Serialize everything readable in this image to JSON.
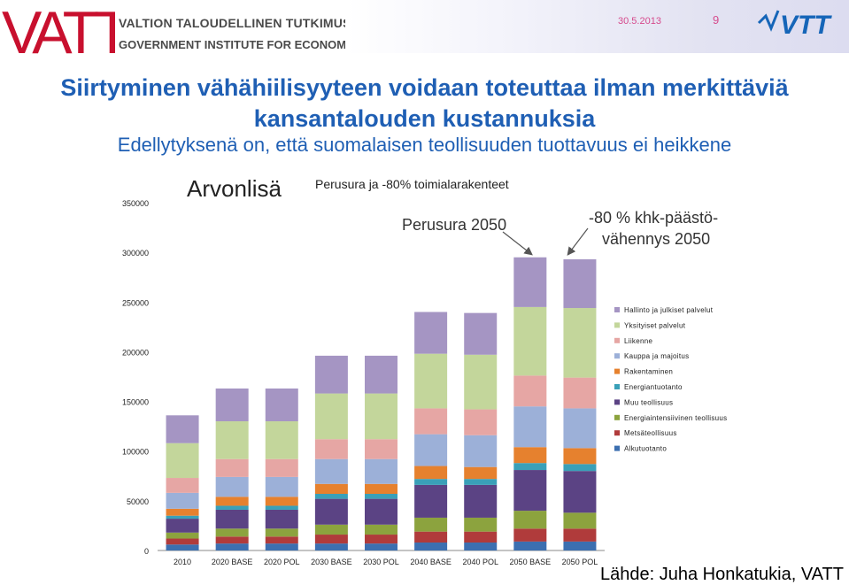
{
  "header": {
    "org_line1": "VALTION TALOUDELLINEN TUTKIMUSKESKUS",
    "org_line2": "GOVERNMENT INSTITUTE FOR ECONOMIC RESEARCH",
    "logo_left": "VATT",
    "date": "30.5.2013",
    "page_number": "9",
    "logo_right": "VTT"
  },
  "slide": {
    "title_line1": "Siirtyminen vähähiilisyyteen voidaan toteuttaa ilman merkittäviä",
    "title_line2": "kansantalouden kustannuksia",
    "subtitle": "Edellytyksenä on, että suomalaisen teollisuuden tuottavuus ei heikkene",
    "source": "Lähde: Juha Honkatukia, VATT"
  },
  "colors": {
    "title": "#1f5fb4",
    "header_accent": "#d64a8c",
    "vatt_red": "#c8102e",
    "vtt_blue": "#1565b8"
  },
  "chart_data": {
    "type": "bar",
    "stacked": true,
    "title": "Arvonlisä",
    "annotations": {
      "subtitle": "Perusura ja -80% toimialarakenteet",
      "label_baseline": "Perusura 2050",
      "label_policy_line1": "-80 % khk-päästö-",
      "label_policy_line2": "vähennys 2050"
    },
    "categories": [
      "2010",
      "2020 BASE",
      "2020 POL",
      "2030 BASE",
      "2030 POL",
      "2040 BASE",
      "2040 POL",
      "2050 BASE",
      "2050 POL"
    ],
    "ylim": [
      0,
      350000
    ],
    "yticks": [
      "0",
      "50000",
      "100000",
      "150000",
      "200000",
      "250000",
      "300000",
      "350000"
    ],
    "legend_position": "right",
    "series": [
      {
        "name": "Alkutuotanto",
        "color": "#3c6fb0",
        "values": [
          6000,
          7000,
          7000,
          7000,
          7000,
          8000,
          8000,
          9000,
          9000
        ]
      },
      {
        "name": "Metsäteollisuus",
        "color": "#b03b3b",
        "values": [
          6000,
          7000,
          7000,
          9000,
          9000,
          11000,
          11000,
          13000,
          13000
        ]
      },
      {
        "name": "Energiaintensiivinen teollisuus",
        "color": "#8ca33e",
        "values": [
          6000,
          8000,
          8000,
          10000,
          10000,
          14000,
          14000,
          18000,
          16000
        ]
      },
      {
        "name": "Muu teollisuus",
        "color": "#5b4384",
        "values": [
          14000,
          19000,
          19000,
          26000,
          26000,
          33000,
          33000,
          41000,
          42000
        ]
      },
      {
        "name": "Energiantuotanto",
        "color": "#3aa0b8",
        "values": [
          3000,
          4000,
          4000,
          5000,
          5000,
          6000,
          6000,
          7000,
          7000
        ]
      },
      {
        "name": "Rakentaminen",
        "color": "#e6812e",
        "values": [
          7000,
          9000,
          9000,
          10000,
          10000,
          13000,
          12000,
          16000,
          16000
        ]
      },
      {
        "name": "Kauppa ja majoitus",
        "color": "#9cb0d8",
        "values": [
          16000,
          20000,
          20000,
          25000,
          25000,
          32000,
          32000,
          41000,
          40000
        ]
      },
      {
        "name": "Liikenne",
        "color": "#e6a6a4",
        "values": [
          15000,
          18000,
          18000,
          20000,
          20000,
          26000,
          26000,
          31000,
          31000
        ]
      },
      {
        "name": "Yksityiset palvelut",
        "color": "#c3d69b",
        "values": [
          35000,
          38000,
          38000,
          46000,
          46000,
          55000,
          55000,
          69000,
          70000
        ]
      },
      {
        "name": "Hallinto ja julkiset palvelut",
        "color": "#a595c3",
        "values": [
          28000,
          33000,
          33000,
          38000,
          38000,
          42000,
          42000,
          50000,
          49000
        ]
      }
    ]
  }
}
